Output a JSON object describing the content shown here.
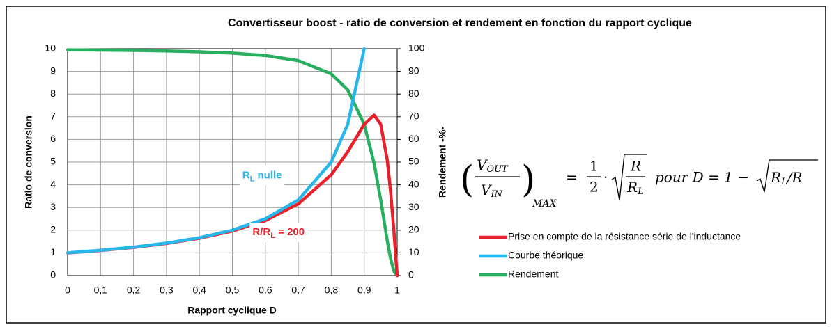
{
  "chart_data": {
    "type": "line",
    "title": "Convertisseur boost - ratio de conversion et rendement en fonction du rapport cyclique",
    "x_label": "Rapport cyclique D",
    "y_label": "Ratio de conversion",
    "y2_label": "Rendement -%-",
    "x": [
      0,
      0.1,
      0.2,
      0.3,
      0.4,
      0.5,
      0.6,
      0.7,
      0.8,
      0.85,
      0.9,
      0.93,
      0.95,
      0.97,
      0.98,
      0.99,
      1
    ],
    "series": [
      {
        "name": "Prise en compte de la résistance série de l'inductance",
        "color": "#e8202a",
        "values": [
          0.995,
          1.104,
          1.24,
          1.414,
          1.644,
          1.961,
          2.424,
          3.158,
          4.444,
          5.455,
          6.667,
          7.071,
          6.667,
          5.085,
          3.704,
          1.961,
          0
        ]
      },
      {
        "name": "Courbe théorique",
        "color": "#29b6e8",
        "values": [
          1,
          1.111,
          1.25,
          1.429,
          1.667,
          2,
          2.5,
          3.333,
          5,
          6.667,
          10,
          null,
          null,
          null,
          null,
          null,
          null
        ]
      },
      {
        "name": "Rendement",
        "color": "#27ae5f",
        "axis": "y2",
        "values": [
          99.5,
          99.39,
          99.22,
          98.99,
          98.63,
          98.04,
          96.97,
          94.74,
          88.89,
          81.82,
          66.67,
          49.49,
          33.33,
          15.25,
          7.41,
          1.96,
          0
        ]
      }
    ],
    "xlim": [
      0,
      1
    ],
    "xticks": [
      0,
      {
        "value": 0.1,
        "label": "0,1"
      },
      {
        "value": 0.2,
        "label": "0,2"
      },
      {
        "value": 0.3,
        "label": "0,3"
      },
      {
        "value": 0.4,
        "label": "0,4"
      },
      {
        "value": 0.5,
        "label": "0,5"
      },
      {
        "value": 0.6,
        "label": "0,6"
      },
      {
        "value": 0.7,
        "label": "0,7"
      },
      {
        "value": 0.8,
        "label": "0,8"
      },
      {
        "value": 0.9,
        "label": "0,9"
      },
      1
    ],
    "ylim": [
      0,
      10
    ],
    "yticks": [
      0,
      1,
      2,
      3,
      4,
      5,
      6,
      7,
      8,
      9,
      10
    ],
    "y2lim": [
      0,
      100
    ],
    "y2ticks": [
      0,
      10,
      20,
      30,
      40,
      50,
      60,
      70,
      80,
      90,
      100
    ],
    "grid": true,
    "legend": "right",
    "annotations": [
      {
        "text": [
          "R",
          "L",
          " nulle"
        ],
        "color": "#29b6e8",
        "x": 0.7,
        "y": 4.4
      },
      {
        "text": [
          "R/R",
          "L",
          " = 200"
        ],
        "color": "#e8202a",
        "x": 0.75,
        "y": 1.9
      }
    ],
    "formula": {
      "num": [
        "V",
        "OUT"
      ],
      "den": [
        "V",
        "IN"
      ],
      "sub": "MAX",
      "eq": "=",
      "half_num": "1",
      "half_den": "2",
      "dot": "·",
      "root_num": "R",
      "root_den": [
        "R",
        "L"
      ],
      "cond": "pour D = 1 −",
      "root2": [
        "R",
        "L",
        "/R"
      ]
    }
  }
}
